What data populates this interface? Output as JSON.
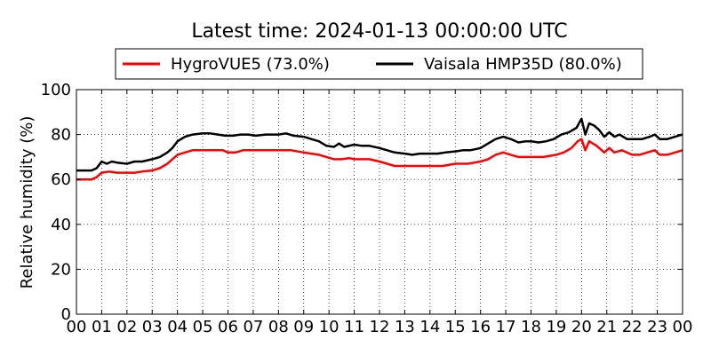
{
  "chart_data": {
    "type": "line",
    "title": "Latest time: 2024-01-13 00:00:00 UTC",
    "xlabel": "",
    "ylabel": "Relative humidity (%)",
    "xlim": [
      0,
      24
    ],
    "ylim": [
      0,
      100
    ],
    "x_tick_labels": [
      "00",
      "01",
      "02",
      "03",
      "04",
      "05",
      "06",
      "07",
      "08",
      "09",
      "10",
      "11",
      "12",
      "13",
      "14",
      "15",
      "16",
      "17",
      "18",
      "19",
      "20",
      "21",
      "22",
      "23",
      "00"
    ],
    "y_ticks": [
      0,
      20,
      40,
      60,
      80,
      100
    ],
    "grid": true,
    "legend_position": "top-center",
    "series": [
      {
        "name": "HygroVUE5 (73.0%)",
        "color": "#ff0000",
        "points": [
          [
            0,
            60
          ],
          [
            0.3,
            60
          ],
          [
            0.6,
            60
          ],
          [
            0.8,
            61
          ],
          [
            1.0,
            63
          ],
          [
            1.3,
            63.5
          ],
          [
            1.6,
            63
          ],
          [
            2.0,
            63
          ],
          [
            2.3,
            63
          ],
          [
            2.6,
            63.5
          ],
          [
            3.0,
            64
          ],
          [
            3.3,
            65
          ],
          [
            3.6,
            67
          ],
          [
            3.8,
            69
          ],
          [
            4.0,
            71
          ],
          [
            4.3,
            72
          ],
          [
            4.6,
            73
          ],
          [
            5.0,
            73
          ],
          [
            5.5,
            73
          ],
          [
            5.8,
            73
          ],
          [
            6.0,
            72
          ],
          [
            6.3,
            72
          ],
          [
            6.6,
            73
          ],
          [
            7.0,
            73
          ],
          [
            7.5,
            73
          ],
          [
            8.0,
            73
          ],
          [
            8.5,
            73
          ],
          [
            9.0,
            72
          ],
          [
            9.3,
            71.5
          ],
          [
            9.6,
            71
          ],
          [
            9.9,
            70
          ],
          [
            10.2,
            69
          ],
          [
            10.5,
            69
          ],
          [
            10.8,
            69.5
          ],
          [
            11.0,
            69
          ],
          [
            11.3,
            69
          ],
          [
            11.6,
            69
          ],
          [
            12.0,
            68
          ],
          [
            12.3,
            67
          ],
          [
            12.6,
            66
          ],
          [
            13.0,
            66
          ],
          [
            13.5,
            66
          ],
          [
            14.0,
            66
          ],
          [
            14.5,
            66
          ],
          [
            15.0,
            67
          ],
          [
            15.5,
            67
          ],
          [
            16.0,
            68
          ],
          [
            16.3,
            69
          ],
          [
            16.6,
            71
          ],
          [
            16.9,
            72
          ],
          [
            17.2,
            71
          ],
          [
            17.5,
            70
          ],
          [
            18.0,
            70
          ],
          [
            18.5,
            70
          ],
          [
            19.0,
            71
          ],
          [
            19.3,
            72
          ],
          [
            19.6,
            74
          ],
          [
            19.85,
            77
          ],
          [
            20.0,
            78
          ],
          [
            20.15,
            73
          ],
          [
            20.3,
            77
          ],
          [
            20.6,
            75
          ],
          [
            20.9,
            72
          ],
          [
            21.1,
            74
          ],
          [
            21.3,
            72
          ],
          [
            21.6,
            73
          ],
          [
            22.0,
            71
          ],
          [
            22.3,
            71
          ],
          [
            22.6,
            72
          ],
          [
            22.9,
            73
          ],
          [
            23.1,
            71
          ],
          [
            23.4,
            71
          ],
          [
            23.7,
            72
          ],
          [
            24.0,
            73
          ]
        ]
      },
      {
        "name": "Vaisala HMP35D (80.0%)",
        "color": "#000000",
        "points": [
          [
            0,
            64
          ],
          [
            0.3,
            64
          ],
          [
            0.6,
            64
          ],
          [
            0.8,
            65
          ],
          [
            1.0,
            68
          ],
          [
            1.2,
            67
          ],
          [
            1.4,
            68
          ],
          [
            1.6,
            67.5
          ],
          [
            2.0,
            67
          ],
          [
            2.3,
            68
          ],
          [
            2.6,
            68
          ],
          [
            3.0,
            69
          ],
          [
            3.3,
            70
          ],
          [
            3.6,
            72
          ],
          [
            3.8,
            74
          ],
          [
            4.0,
            77
          ],
          [
            4.3,
            79
          ],
          [
            4.6,
            80
          ],
          [
            5.0,
            80.5
          ],
          [
            5.3,
            80.5
          ],
          [
            5.6,
            80
          ],
          [
            5.9,
            79.5
          ],
          [
            6.2,
            79.5
          ],
          [
            6.5,
            80
          ],
          [
            6.8,
            80
          ],
          [
            7.1,
            79.5
          ],
          [
            7.5,
            80
          ],
          [
            8.0,
            80
          ],
          [
            8.3,
            80.5
          ],
          [
            8.6,
            79.5
          ],
          [
            9.0,
            79
          ],
          [
            9.3,
            78
          ],
          [
            9.6,
            77
          ],
          [
            9.9,
            75
          ],
          [
            10.2,
            74.5
          ],
          [
            10.4,
            76
          ],
          [
            10.6,
            74.5
          ],
          [
            11.0,
            75.5
          ],
          [
            11.3,
            75
          ],
          [
            11.6,
            75
          ],
          [
            12.0,
            74
          ],
          [
            12.3,
            73
          ],
          [
            12.6,
            72
          ],
          [
            13.0,
            71.5
          ],
          [
            13.3,
            71
          ],
          [
            13.6,
            71.5
          ],
          [
            14.0,
            71.5
          ],
          [
            14.3,
            71.5
          ],
          [
            14.6,
            72
          ],
          [
            15.0,
            72.5
          ],
          [
            15.3,
            73
          ],
          [
            15.6,
            73
          ],
          [
            16.0,
            74
          ],
          [
            16.3,
            76
          ],
          [
            16.6,
            78
          ],
          [
            16.9,
            79
          ],
          [
            17.2,
            78
          ],
          [
            17.5,
            76.5
          ],
          [
            17.8,
            77
          ],
          [
            18.0,
            77
          ],
          [
            18.3,
            76.5
          ],
          [
            18.6,
            77
          ],
          [
            18.9,
            78
          ],
          [
            19.2,
            80
          ],
          [
            19.5,
            81
          ],
          [
            19.8,
            83
          ],
          [
            20.0,
            87
          ],
          [
            20.15,
            80
          ],
          [
            20.3,
            85
          ],
          [
            20.5,
            84
          ],
          [
            20.7,
            82
          ],
          [
            20.9,
            79
          ],
          [
            21.1,
            81
          ],
          [
            21.3,
            79
          ],
          [
            21.5,
            80
          ],
          [
            21.8,
            78
          ],
          [
            22.1,
            78
          ],
          [
            22.4,
            78
          ],
          [
            22.7,
            79
          ],
          [
            22.9,
            80
          ],
          [
            23.1,
            78
          ],
          [
            23.4,
            78
          ],
          [
            23.7,
            79
          ],
          [
            24.0,
            80
          ]
        ]
      }
    ]
  }
}
